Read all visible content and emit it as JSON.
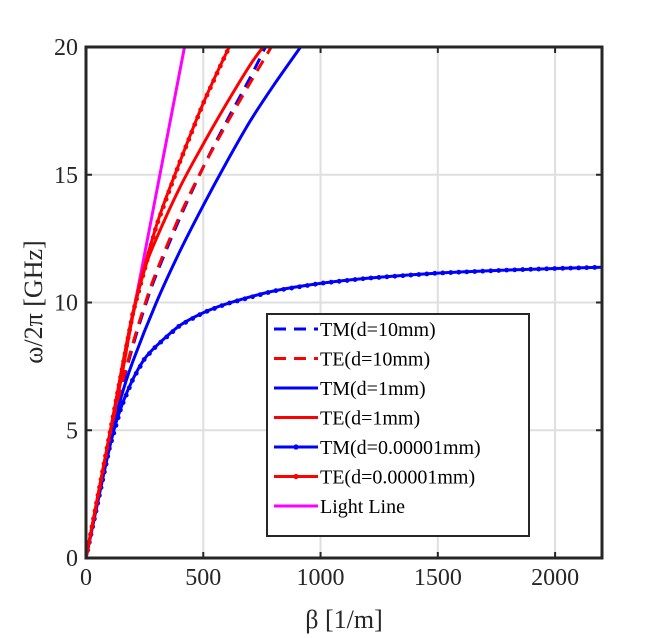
{
  "chart_data": {
    "type": "line",
    "title": "",
    "xlabel": "β [1/m]",
    "ylabel": "ω/2π [GHz]",
    "xlim": [
      0,
      2200
    ],
    "ylim": [
      0,
      20
    ],
    "xticks": [
      0,
      500,
      1000,
      1500,
      2000
    ],
    "yticks": [
      0,
      5,
      10,
      15,
      20
    ],
    "grid": true,
    "legend_position": "bottom-right",
    "series": [
      {
        "name": "TM(d=10mm)",
        "color": "#0000ff",
        "style": "dashed",
        "marker": "none",
        "x": [
          0,
          100,
          150,
          200,
          250,
          300,
          400,
          500,
          600,
          700,
          765
        ],
        "y": [
          0,
          4.6,
          6.6,
          8.3,
          9.8,
          11.1,
          13.3,
          15.3,
          17.1,
          18.8,
          20
        ]
      },
      {
        "name": "TE(d=10mm)",
        "color": "#ff0000",
        "style": "dashed",
        "marker": "none",
        "x": [
          0,
          100,
          150,
          200,
          250,
          300,
          400,
          500,
          600,
          700,
          790
        ],
        "y": [
          0,
          4.7,
          6.7,
          8.4,
          9.9,
          11.2,
          13.4,
          15.3,
          17.0,
          18.6,
          20
        ]
      },
      {
        "name": "TM(d=1mm)",
        "color": "#0000ff",
        "style": "solid",
        "marker": "none",
        "x": [
          0,
          100,
          150,
          200,
          300,
          400,
          500,
          600,
          700,
          800,
          915
        ],
        "y": [
          0,
          4.5,
          6.3,
          7.7,
          10.0,
          12.0,
          13.8,
          15.5,
          17.1,
          18.5,
          20
        ]
      },
      {
        "name": "TE(d=1mm)",
        "color": "#ff0000",
        "style": "solid",
        "marker": "none",
        "x": [
          0,
          100,
          150,
          200,
          250,
          300,
          400,
          500,
          600,
          700,
          755
        ],
        "y": [
          0,
          4.8,
          7.0,
          9.5,
          11.3,
          12.5,
          14.5,
          16.2,
          17.8,
          19.3,
          20
        ]
      },
      {
        "name": "TM(d=0.00001mm)",
        "color": "#0000ff",
        "style": "solid",
        "marker": "dot",
        "x": [
          0,
          100,
          150,
          200,
          250,
          300,
          400,
          500,
          600,
          800,
          1000,
          1200,
          1500,
          1800,
          2000,
          2200
        ],
        "y": [
          0,
          4.3,
          5.9,
          7.0,
          7.8,
          8.3,
          9.1,
          9.6,
          9.95,
          10.45,
          10.75,
          10.95,
          11.15,
          11.27,
          11.33,
          11.38
        ]
      },
      {
        "name": "TE(d=0.00001mm)",
        "color": "#ff0000",
        "style": "solid",
        "marker": "dot",
        "x": [
          0,
          100,
          200,
          300,
          400,
          500,
          600,
          615
        ],
        "y": [
          0,
          4.8,
          9.6,
          13.0,
          15.5,
          17.8,
          19.8,
          20
        ]
      },
      {
        "name": "Light Line",
        "color": "#ff00ff",
        "style": "solid",
        "marker": "none",
        "x": [
          0,
          420
        ],
        "y": [
          0,
          20
        ]
      }
    ]
  }
}
